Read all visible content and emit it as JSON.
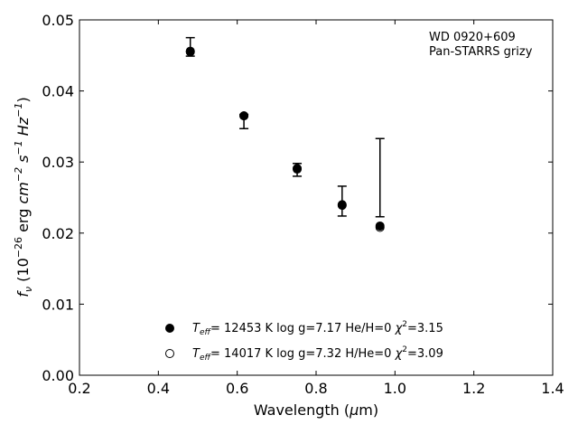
{
  "chart_data": {
    "type": "scatter",
    "annotation": [
      "WD 0920+609",
      "Pan-STARRS grizy"
    ],
    "xlabel": "Wavelength (μm)",
    "ylabel": "fν (10⁻²⁶ erg cm⁻² s⁻¹ Hz⁻¹)",
    "xlim": [
      0.2,
      1.4
    ],
    "ylim": [
      0.0,
      0.05
    ],
    "xticks": [
      "0.2",
      "0.4",
      "0.6",
      "0.8",
      "1.0",
      "1.2",
      "1.4"
    ],
    "yticks": [
      "0.00",
      "0.01",
      "0.02",
      "0.03",
      "0.04",
      "0.05"
    ],
    "grid": false,
    "observed": {
      "x": [
        0.481,
        0.617,
        0.752,
        0.866,
        0.962
      ],
      "y": [
        0.0462,
        0.0357,
        0.0289,
        0.0245,
        0.0278
      ],
      "err": [
        0.0013,
        0.001,
        0.0009,
        0.0021,
        0.0055
      ]
    },
    "series": [
      {
        "label": "T_eff= 12453 K  log g=7.17  He/H=0  χ²=3.15",
        "marker": "filled",
        "x": [
          0.481,
          0.617,
          0.752,
          0.866,
          0.962
        ],
        "y": [
          0.0455,
          0.0365,
          0.029,
          0.0239,
          0.021
        ]
      },
      {
        "label": "T_eff= 14017 K  log g=7.32  H/He=0  χ²=3.09",
        "marker": "open",
        "x": [
          0.481,
          0.617,
          0.752,
          0.866,
          0.962
        ],
        "y": [
          0.0456,
          0.0365,
          0.0291,
          0.024,
          0.0208
        ]
      }
    ],
    "legend": {
      "position": "lower-center",
      "entries": [
        {
          "teff": "= 12453 K  log g=7.17  He/H=0  ",
          "chi": "=3.15"
        },
        {
          "teff": "= 14017 K  log g=7.32  H/He=0  ",
          "chi": "=3.09"
        }
      ]
    }
  }
}
